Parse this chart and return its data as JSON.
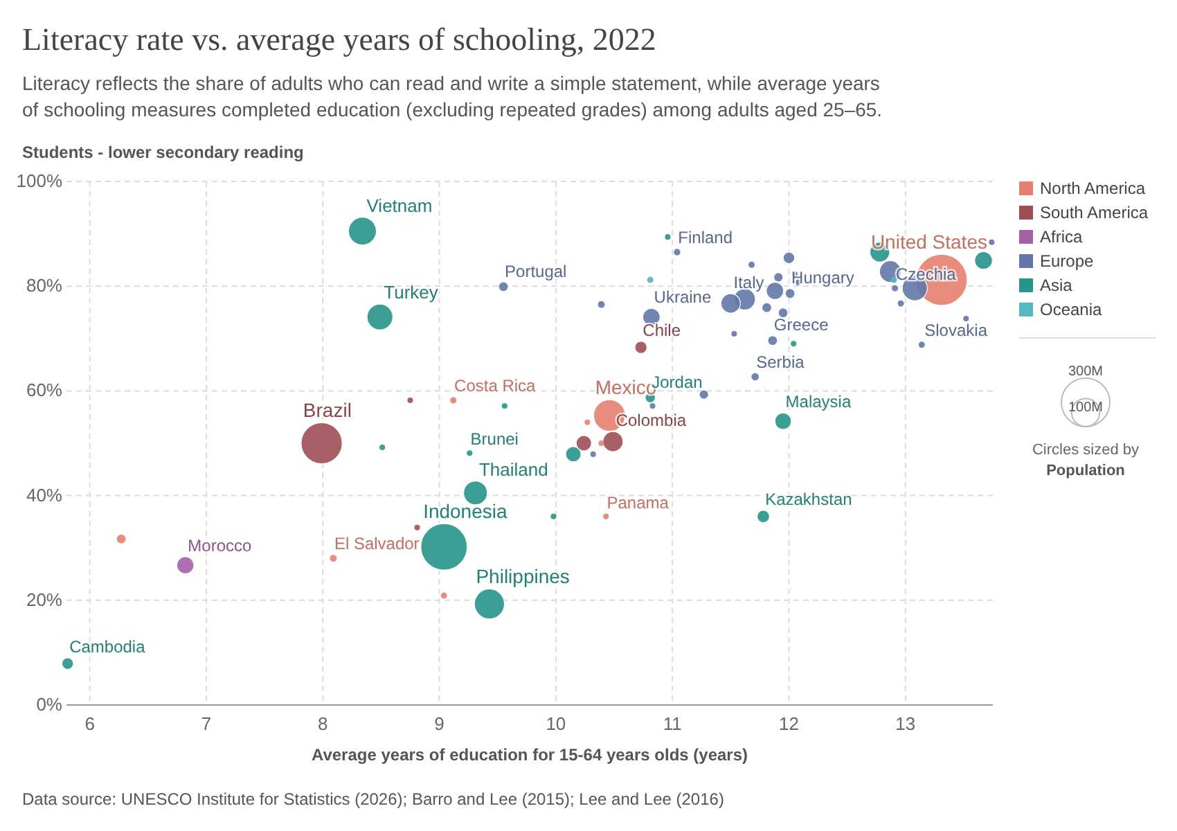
{
  "chart_data": {
    "type": "bubble",
    "title": "Literacy rate vs. average years of schooling, 2022",
    "subtitle": "Literacy reflects the share of adults who can read and write a simple statement, while average years of schooling measures completed education (excluding repeated grades) among adults aged 25–65.",
    "ylabel": "Students - lower secondary reading",
    "xlabel": "Average years of education for 15-64 years olds (years)",
    "legend": "right",
    "grid": true,
    "xlim": [
      5.8,
      13.75
    ],
    "xticks": [
      6,
      7,
      8,
      9,
      10,
      11,
      12,
      13
    ],
    "ylim": [
      0,
      100
    ],
    "yticks": [
      {
        "value": 0,
        "label": "0%"
      },
      {
        "value": 20,
        "label": "20%"
      },
      {
        "value": 40,
        "label": "40%"
      },
      {
        "value": 60,
        "label": "60%"
      },
      {
        "value": 80,
        "label": "80%"
      },
      {
        "value": 100,
        "label": "100%"
      }
    ],
    "size_legend": [
      {
        "value": 300,
        "label": "300M"
      },
      {
        "value": 100,
        "label": "100M"
      }
    ],
    "series": [
      {
        "name": "North America",
        "color": "#e6806e",
        "x": [
          13.31,
          10.46,
          9.12,
          8.09,
          6.27,
          9.04,
          10.43,
          10.39,
          10.27
        ],
        "values": [
          81.2,
          55.3,
          58.2,
          28.0,
          31.7,
          20.9,
          36.0,
          50.0,
          54.0
        ],
        "sizes": [
          335,
          128,
          5,
          6,
          10,
          5,
          4,
          4,
          4
        ]
      },
      {
        "name": "South America",
        "color": "#9e4f55",
        "x": [
          7.99,
          10.49,
          10.73,
          10.24,
          8.81,
          8.75
        ],
        "values": [
          50.0,
          50.3,
          68.3,
          50.0,
          33.9,
          58.2
        ],
        "sizes": [
          216,
          52,
          19,
          30,
          4,
          4
        ]
      },
      {
        "name": "Africa",
        "color": "#a660a8",
        "x": [
          6.82
        ],
        "values": [
          26.7
        ],
        "sizes": [
          37
        ]
      },
      {
        "name": "Europe",
        "color": "#6378a8",
        "x": [
          9.55,
          10.39,
          10.82,
          11.04,
          11.62,
          11.5,
          11.88,
          12.01,
          12.0,
          11.68,
          11.81,
          11.95,
          12.05,
          12.08,
          11.53,
          11.86,
          11.71,
          11.27,
          10.83,
          10.32,
          13.14,
          13.52,
          12.96,
          12.91,
          13.08,
          12.87,
          13.74,
          11.91
        ],
        "values": [
          79.9,
          76.5,
          74.1,
          86.5,
          77.5,
          76.7,
          79.1,
          78.6,
          85.4,
          84.1,
          75.9,
          74.9,
          82.3,
          80.7,
          70.9,
          69.6,
          62.7,
          59.3,
          57.1,
          47.9,
          68.8,
          73.8,
          76.7,
          79.6,
          79.6,
          82.8,
          88.4,
          81.7
        ],
        "sizes": [
          10,
          6,
          38,
          5.5,
          59,
          48,
          38,
          10,
          17,
          5,
          10,
          10,
          4,
          4,
          4,
          10,
          7,
          9,
          4,
          4,
          5,
          4,
          5,
          5,
          80,
          60,
          4,
          9
        ]
      },
      {
        "name": "Asia",
        "color": "#26958a",
        "x": [
          8.34,
          8.49,
          5.81,
          9.04,
          9.31,
          9.43,
          9.26,
          8.51,
          9.56,
          10.15,
          9.98,
          10.81,
          11.95,
          11.78,
          12.04,
          12.78,
          13.67,
          10.96
        ],
        "values": [
          90.5,
          74.1,
          7.9,
          30.2,
          40.5,
          19.3,
          48.1,
          49.2,
          57.1,
          47.9,
          36.0,
          58.7,
          54.2,
          36.0,
          69.0,
          86.5,
          84.9,
          89.4
        ],
        "sizes": [
          99,
          85,
          17,
          275,
          72,
          115,
          4,
          4,
          4,
          30,
          4,
          11,
          34,
          20,
          4,
          50,
          40,
          4
        ]
      },
      {
        "name": "Oceania",
        "color": "#55b6c4",
        "x": [
          10.81,
          12.9
        ],
        "values": [
          81.2,
          81.2
        ],
        "sizes": [
          5,
          5
        ]
      }
    ],
    "annotations": [
      {
        "text": "Vietnam",
        "x": 8.34,
        "y": 90.5
      },
      {
        "text": "Turkey",
        "x": 8.49,
        "y": 74.1
      },
      {
        "text": "Brazil",
        "x": 7.99,
        "y": 50.0
      },
      {
        "text": "Cambodia",
        "x": 5.81,
        "y": 7.9
      },
      {
        "text": "Morocco",
        "x": 6.82,
        "y": 26.7
      },
      {
        "text": "Indonesia",
        "x": 9.04,
        "y": 30.2
      },
      {
        "text": "Thailand",
        "x": 9.31,
        "y": 40.5
      },
      {
        "text": "Philippines",
        "x": 9.43,
        "y": 19.3
      },
      {
        "text": "Brunei",
        "x": 9.26,
        "y": 48.1
      },
      {
        "text": "Costa Rica",
        "x": 9.12,
        "y": 58.2
      },
      {
        "text": "El Salvador",
        "x": 8.09,
        "y": 28.0
      },
      {
        "text": "Portugal",
        "x": 9.55,
        "y": 79.9
      },
      {
        "text": "Ukraine",
        "x": 10.82,
        "y": 74.1
      },
      {
        "text": "Chile",
        "x": 10.73,
        "y": 68.3
      },
      {
        "text": "Finland",
        "x": 11.04,
        "y": 86.5
      },
      {
        "text": "Mexico",
        "x": 10.46,
        "y": 55.3
      },
      {
        "text": "Colombia",
        "x": 10.49,
        "y": 50.3
      },
      {
        "text": "Panama",
        "x": 10.43,
        "y": 36.0
      },
      {
        "text": "Jordan",
        "x": 10.81,
        "y": 58.7
      },
      {
        "text": "Serbia",
        "x": 11.71,
        "y": 62.7
      },
      {
        "text": "Malaysia",
        "x": 11.95,
        "y": 54.2
      },
      {
        "text": "Kazakhstan",
        "x": 11.78,
        "y": 36.0
      },
      {
        "text": "Italy",
        "x": 11.5,
        "y": 76.7
      },
      {
        "text": "Hungary",
        "x": 12.01,
        "y": 78.6
      },
      {
        "text": "Greece",
        "x": 11.86,
        "y": 69.6
      },
      {
        "text": "Slovakia",
        "x": 13.14,
        "y": 68.8
      },
      {
        "text": "United States",
        "x": 13.31,
        "y": 81.2
      },
      {
        "text": "Czechia",
        "x": 12.91,
        "y": 79.6
      },
      "Circles sized by",
      "Population",
      "Data source: UNESCO Institute for Statistics (2026); Barro and Lee (2015); Lee and Lee (2016)"
    ]
  }
}
